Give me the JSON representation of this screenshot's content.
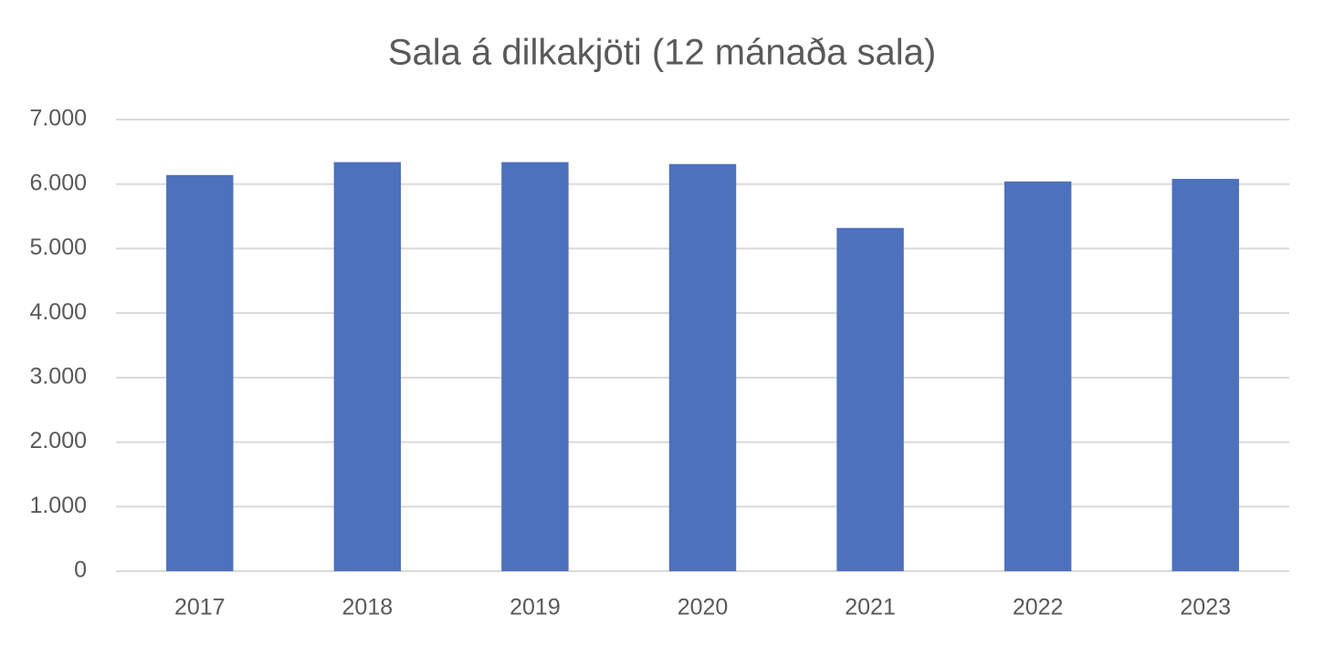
{
  "chart_data": {
    "type": "bar",
    "title": "Sala á dilkakjöti (12 mánaða sala)",
    "categories": [
      "2017",
      "2018",
      "2019",
      "2020",
      "2021",
      "2022",
      "2023"
    ],
    "values": [
      6140,
      6340,
      6340,
      6310,
      5320,
      6040,
      6080
    ],
    "color": "#4e71bd",
    "ylim": [
      0,
      7000
    ],
    "yticks": [
      0,
      {
        "value": 1000,
        "label": "1.000"
      },
      {
        "value": 2000,
        "label": "2.000"
      },
      {
        "value": 3000,
        "label": "3.000"
      },
      {
        "value": 4000,
        "label": "4.000"
      },
      {
        "value": 5000,
        "label": "5.000"
      },
      {
        "value": 6000,
        "label": "6.000"
      },
      {
        "value": 7000,
        "label": "7.000"
      }
    ],
    "grid": true
  }
}
